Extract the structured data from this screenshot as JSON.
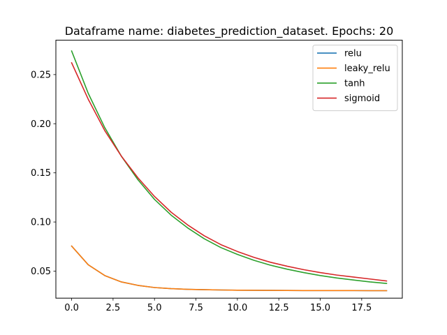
{
  "chart_data": {
    "type": "line",
    "title": "Dataframe name: diabetes_prediction_dataset. Epochs: 20",
    "xlabel": "",
    "ylabel": "",
    "xlim": [
      -0.95,
      19.95
    ],
    "ylim": [
      0.0225,
      0.285
    ],
    "grid": false,
    "legend_position": "top-right",
    "x_ticks": [
      0.0,
      2.5,
      5.0,
      7.5,
      10.0,
      12.5,
      15.0,
      17.5
    ],
    "x_tick_labels": [
      "0.0",
      "2.5",
      "5.0",
      "7.5",
      "10.0",
      "12.5",
      "15.0",
      "17.5"
    ],
    "y_ticks": [
      0.05,
      0.1,
      0.15,
      0.2,
      0.25
    ],
    "y_tick_labels": [
      "0.05",
      "0.10",
      "0.15",
      "0.20",
      "0.25"
    ],
    "x": [
      0,
      1,
      2,
      3,
      4,
      5,
      6,
      7,
      8,
      9,
      10,
      11,
      12,
      13,
      14,
      15,
      16,
      17,
      18,
      19
    ],
    "series": [
      {
        "name": "relu",
        "color": "#1f77b4",
        "values": [
          0.0755,
          0.0565,
          0.0455,
          0.039,
          0.0355,
          0.0333,
          0.0322,
          0.0315,
          0.0311,
          0.0308,
          0.0306,
          0.0305,
          0.0304,
          0.0303,
          0.0302,
          0.0302,
          0.0302,
          0.0302,
          0.0301,
          0.0301
        ]
      },
      {
        "name": "leaky_relu",
        "color": "#ff7f0e",
        "values": [
          0.0755,
          0.0565,
          0.0455,
          0.039,
          0.0355,
          0.0333,
          0.0322,
          0.0315,
          0.0311,
          0.0308,
          0.0306,
          0.0305,
          0.0304,
          0.0303,
          0.0302,
          0.0302,
          0.0302,
          0.0302,
          0.0301,
          0.0301
        ]
      },
      {
        "name": "tanh",
        "color": "#2ca02c",
        "values": [
          0.274,
          0.231,
          0.196,
          0.167,
          0.143,
          0.123,
          0.107,
          0.094,
          0.083,
          0.074,
          0.067,
          0.061,
          0.056,
          0.052,
          0.0485,
          0.0455,
          0.043,
          0.041,
          0.039,
          0.0375
        ]
      },
      {
        "name": "sigmoid",
        "color": "#d62728",
        "values": [
          0.262,
          0.225,
          0.193,
          0.167,
          0.145,
          0.126,
          0.11,
          0.097,
          0.086,
          0.077,
          0.07,
          0.064,
          0.059,
          0.055,
          0.0515,
          0.0485,
          0.046,
          0.044,
          0.042,
          0.04
        ]
      }
    ]
  }
}
